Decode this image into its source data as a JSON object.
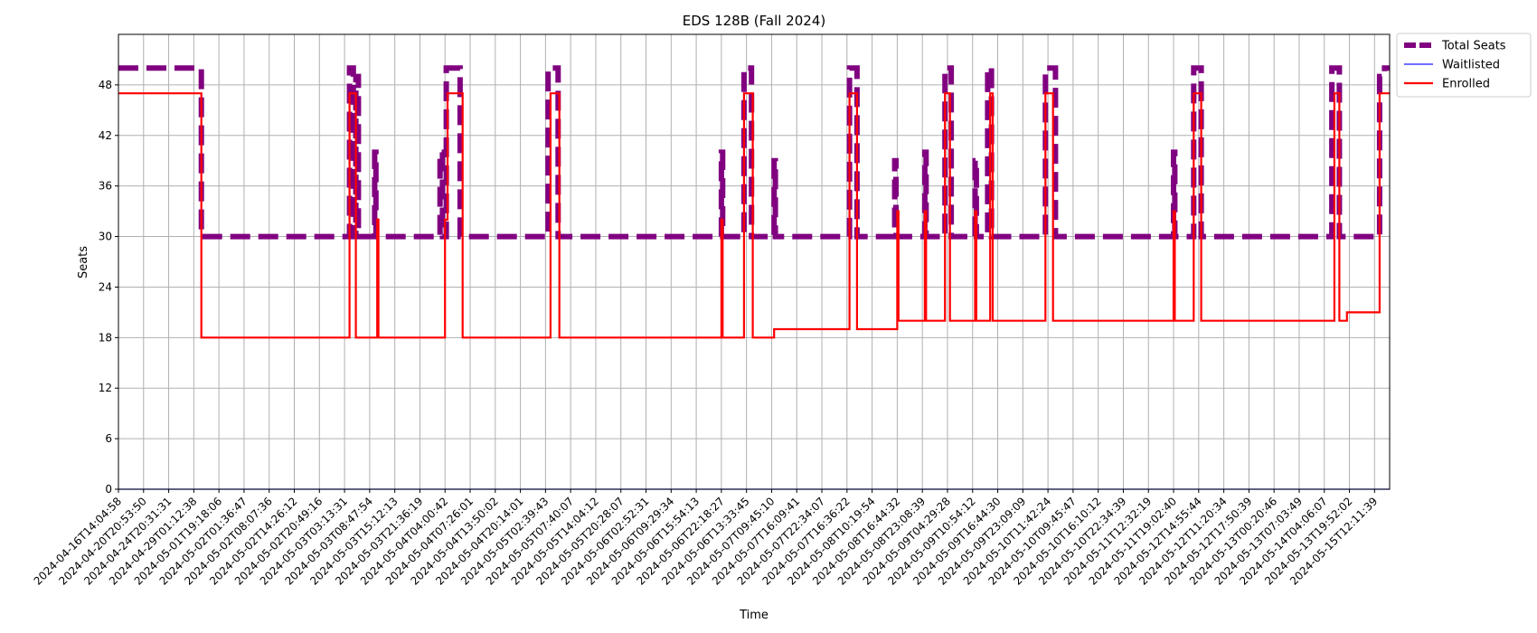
{
  "chart_data": {
    "type": "line",
    "title": "EDS 128B (Fall 2024)",
    "xlabel": "Time",
    "ylabel": "Seats",
    "ylim": [
      0,
      54
    ],
    "yticks": [
      0,
      6,
      12,
      18,
      24,
      30,
      36,
      42,
      48
    ],
    "grid": true,
    "legend_position": "outside-top-right",
    "x_tick_labels": [
      "2024-04-16T14:04:58",
      "2024-04-20T20:53:50",
      "2024-04-24T20:31:31",
      "2024-04-29T01:12:38",
      "2024-05-01T19:18:06",
      "2024-05-02T01:36:47",
      "2024-05-02T08:07:36",
      "2024-05-02T14:26:12",
      "2024-05-02T20:49:16",
      "2024-05-03T03:13:31",
      "2024-05-03T08:47:54",
      "2024-05-03T15:12:13",
      "2024-05-03T21:36:19",
      "2024-05-04T04:00:42",
      "2024-05-04T07:26:01",
      "2024-05-04T13:50:02",
      "2024-05-04T20:14:01",
      "2024-05-05T02:39:43",
      "2024-05-05T07:40:07",
      "2024-05-05T14:04:12",
      "2024-05-05T20:28:07",
      "2024-05-06T02:52:31",
      "2024-05-06T09:29:34",
      "2024-05-06T15:54:13",
      "2024-05-06T22:18:27",
      "2024-05-06T13:33:45",
      "2024-05-07T09:45:10",
      "2024-05-07T16:09:41",
      "2024-05-07T22:34:07",
      "2024-05-07T16:36:22",
      "2024-05-08T10:19:54",
      "2024-05-08T16:44:32",
      "2024-05-08T23:08:39",
      "2024-05-09T04:29:28",
      "2024-05-09T10:54:12",
      "2024-05-09T16:44:30",
      "2024-05-09T23:09:09",
      "2024-05-10T11:42:24",
      "2024-05-10T09:45:47",
      "2024-05-10T16:10:12",
      "2024-05-10T22:34:39",
      "2024-05-11T12:32:19",
      "2024-05-11T19:02:40",
      "2024-05-12T14:55:44",
      "2024-05-12T11:20:34",
      "2024-05-12T17:50:39",
      "2024-05-13T00:20:46",
      "2024-05-13T07:03:49",
      "2024-05-14T04:06:07",
      "2024-05-13T19:52:02",
      "2024-05-15T12:11:39"
    ],
    "series": [
      {
        "name": "Total Seats",
        "color": "#800080",
        "style": "dashed",
        "points": [
          [
            0,
            50
          ],
          [
            3.3,
            50
          ],
          [
            3.3,
            30
          ],
          [
            9.2,
            30
          ],
          [
            9.2,
            50
          ],
          [
            9.35,
            50
          ],
          [
            9.35,
            30
          ],
          [
            9.45,
            30
          ],
          [
            9.45,
            49
          ],
          [
            9.55,
            49
          ],
          [
            9.55,
            30
          ],
          [
            10.2,
            30
          ],
          [
            10.2,
            40
          ],
          [
            10.25,
            40
          ],
          [
            10.25,
            30
          ],
          [
            12.8,
            30
          ],
          [
            12.8,
            40
          ],
          [
            12.9,
            40
          ],
          [
            12.9,
            30
          ],
          [
            13.05,
            30
          ],
          [
            13.05,
            50
          ],
          [
            13.6,
            50
          ],
          [
            13.6,
            30
          ],
          [
            17.1,
            30
          ],
          [
            17.1,
            50
          ],
          [
            17.5,
            50
          ],
          [
            17.5,
            30
          ],
          [
            24.0,
            30
          ],
          [
            24.0,
            40
          ],
          [
            24.05,
            40
          ],
          [
            24.05,
            30
          ],
          [
            24.9,
            30
          ],
          [
            24.9,
            50
          ],
          [
            25.2,
            50
          ],
          [
            25.2,
            30
          ],
          [
            26.1,
            30
          ],
          [
            26.1,
            39
          ],
          [
            26.15,
            39
          ],
          [
            26.15,
            30
          ],
          [
            29.1,
            30
          ],
          [
            29.1,
            50
          ],
          [
            29.4,
            50
          ],
          [
            29.4,
            30
          ],
          [
            30.9,
            30
          ],
          [
            30.9,
            39
          ],
          [
            30.95,
            39
          ],
          [
            30.95,
            30
          ],
          [
            32.1,
            30
          ],
          [
            32.1,
            40
          ],
          [
            32.15,
            40
          ],
          [
            32.15,
            30
          ],
          [
            32.9,
            30
          ],
          [
            32.9,
            49
          ],
          [
            33.1,
            49
          ],
          [
            33.1,
            50
          ],
          [
            33.15,
            50
          ],
          [
            33.15,
            30
          ],
          [
            34.1,
            30
          ],
          [
            34.1,
            39
          ],
          [
            34.15,
            39
          ],
          [
            34.15,
            30
          ],
          [
            34.6,
            30
          ],
          [
            34.6,
            50
          ],
          [
            34.75,
            50
          ],
          [
            34.75,
            30
          ],
          [
            36.9,
            30
          ],
          [
            36.9,
            50
          ],
          [
            37.3,
            50
          ],
          [
            37.3,
            30
          ],
          [
            42.0,
            30
          ],
          [
            42.0,
            40
          ],
          [
            42.05,
            40
          ],
          [
            42.05,
            30
          ],
          [
            42.8,
            30
          ],
          [
            42.8,
            50
          ],
          [
            43.1,
            50
          ],
          [
            43.1,
            30
          ],
          [
            48.3,
            30
          ],
          [
            48.3,
            50
          ],
          [
            48.6,
            50
          ],
          [
            48.6,
            30
          ],
          [
            50.2,
            30
          ],
          [
            50.2,
            49
          ],
          [
            50.4,
            49
          ],
          [
            50.4,
            50
          ],
          [
            50.6,
            50
          ]
        ]
      },
      {
        "name": "Waitlisted",
        "color": "#1a1aff",
        "style": "solid",
        "points": [
          [
            0,
            0
          ],
          [
            50.6,
            0
          ]
        ]
      },
      {
        "name": "Enrolled",
        "color": "#ff0000",
        "style": "solid",
        "points": [
          [
            0,
            47
          ],
          [
            3.3,
            47
          ],
          [
            3.3,
            18
          ],
          [
            9.2,
            18
          ],
          [
            9.2,
            47
          ],
          [
            9.45,
            47
          ],
          [
            9.45,
            18
          ],
          [
            10.3,
            18
          ],
          [
            10.3,
            32
          ],
          [
            10.35,
            32
          ],
          [
            10.35,
            18
          ],
          [
            13.0,
            18
          ],
          [
            13.0,
            32
          ],
          [
            13.1,
            32
          ],
          [
            13.1,
            47
          ],
          [
            13.7,
            47
          ],
          [
            13.7,
            18
          ],
          [
            17.2,
            18
          ],
          [
            17.2,
            47
          ],
          [
            17.55,
            47
          ],
          [
            17.55,
            18
          ],
          [
            24.0,
            18
          ],
          [
            24.0,
            32
          ],
          [
            24.05,
            32
          ],
          [
            24.05,
            18
          ],
          [
            24.9,
            18
          ],
          [
            24.9,
            47
          ],
          [
            25.25,
            47
          ],
          [
            25.25,
            18
          ],
          [
            26.1,
            18
          ],
          [
            26.1,
            19
          ],
          [
            29.1,
            19
          ],
          [
            29.1,
            47
          ],
          [
            29.4,
            47
          ],
          [
            29.4,
            19
          ],
          [
            31.0,
            19
          ],
          [
            31.0,
            33
          ],
          [
            31.05,
            33
          ],
          [
            31.05,
            20
          ],
          [
            32.1,
            20
          ],
          [
            32.1,
            33
          ],
          [
            32.15,
            33
          ],
          [
            32.15,
            20
          ],
          [
            32.9,
            20
          ],
          [
            32.9,
            47
          ],
          [
            33.1,
            47
          ],
          [
            33.1,
            20
          ],
          [
            34.1,
            20
          ],
          [
            34.1,
            33
          ],
          [
            34.15,
            33
          ],
          [
            34.15,
            20
          ],
          [
            34.7,
            20
          ],
          [
            34.7,
            47
          ],
          [
            34.8,
            47
          ],
          [
            34.8,
            20
          ],
          [
            36.9,
            20
          ],
          [
            36.9,
            47
          ],
          [
            37.2,
            47
          ],
          [
            37.2,
            20
          ],
          [
            42.0,
            20
          ],
          [
            42.0,
            33
          ],
          [
            42.05,
            33
          ],
          [
            42.05,
            20
          ],
          [
            42.8,
            20
          ],
          [
            42.8,
            47
          ],
          [
            43.1,
            47
          ],
          [
            43.1,
            20
          ],
          [
            48.4,
            20
          ],
          [
            48.4,
            47
          ],
          [
            48.6,
            47
          ],
          [
            48.6,
            20
          ],
          [
            48.9,
            20
          ],
          [
            48.9,
            21
          ],
          [
            50.2,
            21
          ],
          [
            50.2,
            47
          ],
          [
            50.6,
            47
          ]
        ]
      }
    ]
  }
}
